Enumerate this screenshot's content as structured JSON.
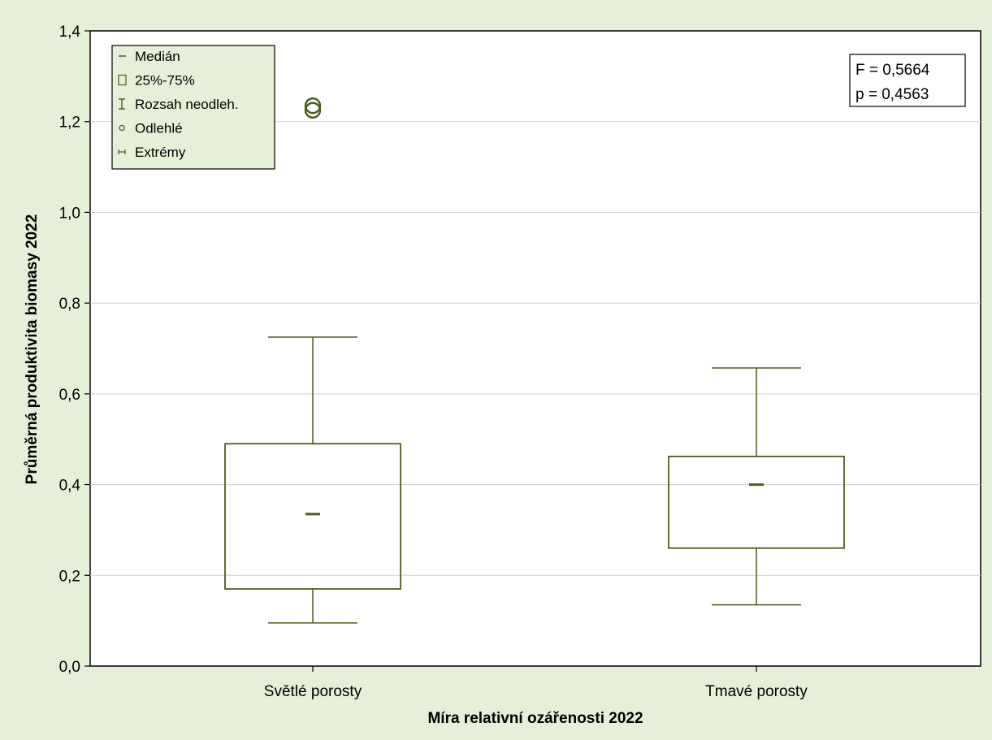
{
  "chart_data": {
    "type": "boxplot",
    "xlabel": "Míra relativní ozářenosti 2022",
    "ylabel": "Průměrná produktivita biomasy 2022",
    "ylim": [
      0,
      1.4
    ],
    "yticks": [
      "0,0",
      "0,2",
      "0,4",
      "0,6",
      "0,8",
      "1,0",
      "1,2",
      "1,4"
    ],
    "ytick_values": [
      0,
      0.2,
      0.4,
      0.6,
      0.8,
      1.0,
      1.2,
      1.4
    ],
    "grid": true,
    "categories": [
      "Světlé porosty",
      "Tmavé porosty"
    ],
    "boxes": [
      {
        "category": "Světlé porosty",
        "median": 0.335,
        "q1": 0.17,
        "q3": 0.49,
        "whisker_low": 0.095,
        "whisker_high": 0.725,
        "outliers": [
          1.225,
          1.235
        ]
      },
      {
        "category": "Tmavé porosty",
        "median": 0.4,
        "q1": 0.26,
        "q3": 0.462,
        "whisker_low": 0.135,
        "whisker_high": 0.657,
        "outliers": []
      }
    ],
    "legend": {
      "position": "top-left",
      "items": [
        "Medián",
        "25%-75%",
        "Rozsah neodleh.",
        "Odlehlé",
        "Extrémy"
      ]
    },
    "annotation": {
      "position": "top-right",
      "lines": [
        "F = 0,5664",
        "p = 0,4563"
      ]
    },
    "colors": {
      "series": "#4d5e1d",
      "background": "#e6f0d8",
      "legend_bg": "#e6f0d8",
      "plot_bg": "#ffffff",
      "grid": "#d0d0d0"
    }
  }
}
